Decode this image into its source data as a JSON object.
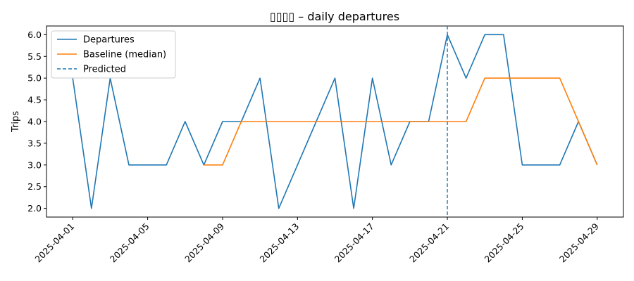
{
  "chart_data": {
    "type": "line",
    "title": "𝑁𝑁𝑁𝑁 – daily departures",
    "title_display": "▯▯▯▯ – daily departures",
    "xlabel": "",
    "ylabel": "Trips",
    "ylim": [
      1.8,
      6.2
    ],
    "y_ticks": [
      "2.0",
      "2.5",
      "3.0",
      "3.5",
      "4.0",
      "4.5",
      "5.0",
      "5.5",
      "6.0"
    ],
    "x_tick_labels": [
      "2025-04-01",
      "2025-04-05",
      "2025-04-09",
      "2025-04-13",
      "2025-04-17",
      "2025-04-21",
      "2025-04-25",
      "2025-04-29"
    ],
    "legend_position": "upper left",
    "series": [
      {
        "name": "Departures",
        "color": "#1f77b4",
        "dash": "solid",
        "x": [
          "2025-04-01",
          "2025-04-02",
          "2025-04-03",
          "2025-04-04",
          "2025-04-05",
          "2025-04-06",
          "2025-04-07",
          "2025-04-08",
          "2025-04-09",
          "2025-04-10",
          "2025-04-11",
          "2025-04-12",
          "2025-04-13",
          "2025-04-14",
          "2025-04-15",
          "2025-04-16",
          "2025-04-17",
          "2025-04-18",
          "2025-04-19",
          "2025-04-20",
          "2025-04-21",
          "2025-04-22",
          "2025-04-23",
          "2025-04-24",
          "2025-04-25",
          "2025-04-26",
          "2025-04-27",
          "2025-04-28",
          "2025-04-29"
        ],
        "values": [
          5,
          2,
          5,
          3,
          3,
          3,
          4,
          3,
          4,
          4,
          5,
          2,
          3,
          4,
          5,
          2,
          5,
          3,
          4,
          4,
          6,
          5,
          6,
          6,
          3,
          3,
          3,
          4,
          3
        ]
      },
      {
        "name": "Baseline (median)",
        "color": "#ff7f0e",
        "dash": "solid",
        "x": [
          "2025-04-08",
          "2025-04-09",
          "2025-04-10",
          "2025-04-11",
          "2025-04-12",
          "2025-04-13",
          "2025-04-14",
          "2025-04-15",
          "2025-04-16",
          "2025-04-17",
          "2025-04-18",
          "2025-04-19",
          "2025-04-20",
          "2025-04-21",
          "2025-04-22",
          "2025-04-23",
          "2025-04-24",
          "2025-04-25",
          "2025-04-26",
          "2025-04-27",
          "2025-04-28",
          "2025-04-29"
        ],
        "values": [
          3,
          3,
          4,
          4,
          4,
          4,
          4,
          4,
          4,
          4,
          4,
          4,
          4,
          4,
          4,
          5,
          5,
          5,
          5,
          5,
          4,
          3
        ]
      }
    ],
    "vlines": [
      {
        "name": "Predicted",
        "x": "2025-04-21",
        "color": "#1f77b4",
        "dash": "dashed"
      }
    ]
  },
  "colors": {
    "axis": "#000000",
    "background": "#ffffff"
  }
}
